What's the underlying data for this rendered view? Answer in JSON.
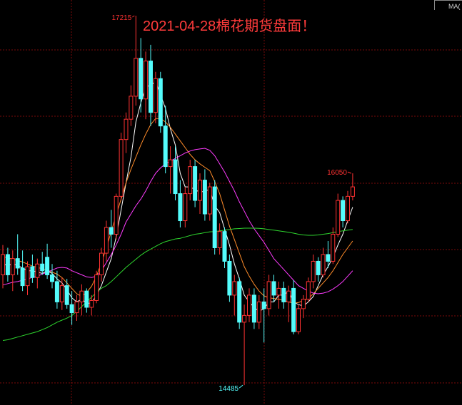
{
  "chart_data": {
    "type": "candlestick",
    "title": "2021-04-28棉花期货盘面！",
    "legend_label": "MA(",
    "up_color": "#ff3232",
    "down_color": "#54fcfc",
    "ylim": [
      14338,
      17331
    ],
    "open": [
      15300,
      15450,
      15300,
      15420,
      15350,
      15220,
      15360,
      15280,
      15380,
      15430,
      15300,
      15250,
      15100,
      15220,
      15080,
      15020,
      15100,
      15180,
      15060,
      15110,
      15300,
      15460,
      15650,
      15600,
      15880,
      16300,
      16450,
      16620,
      16900,
      16600,
      16880,
      16500,
      16750,
      16400,
      16100,
      16150,
      15900,
      15700,
      15900,
      16100,
      15850,
      16000,
      15750,
      15950,
      15500,
      15620,
      15400,
      15150,
      15250,
      14950,
      15000,
      15150,
      14950,
      15100,
      15050,
      15250,
      15150,
      15200,
      15100,
      15200,
      14880,
      15050,
      15120,
      15250,
      15400,
      15300,
      15450,
      15400,
      15600,
      15850,
      15700,
      15880
    ],
    "high": [
      15520,
      15500,
      15480,
      15600,
      15480,
      15400,
      15450,
      15420,
      15470,
      15530,
      15380,
      15330,
      15280,
      15270,
      15180,
      15150,
      15230,
      15200,
      15150,
      15330,
      15500,
      15700,
      15780,
      15900,
      16350,
      16500,
      16700,
      17215,
      17050,
      16950,
      17000,
      16800,
      16800,
      16550,
      16250,
      16250,
      16000,
      15950,
      16150,
      16150,
      16050,
      16080,
      15980,
      16000,
      15680,
      15650,
      15450,
      15300,
      15280,
      15080,
      15200,
      15200,
      15150,
      15200,
      15300,
      15300,
      15250,
      15250,
      15220,
      15260,
      15080,
      15150,
      15280,
      15450,
      15430,
      15500,
      15550,
      15650,
      15900,
      15880,
      15920,
      16050
    ],
    "low": [
      15200,
      15250,
      15180,
      15300,
      15180,
      15150,
      15240,
      15200,
      15300,
      15270,
      15200,
      15050,
      15040,
      15050,
      14930,
      14960,
      15000,
      15020,
      15000,
      15090,
      15250,
      15400,
      15500,
      15560,
      15850,
      16200,
      16400,
      16550,
      16500,
      16450,
      16400,
      16420,
      16350,
      16050,
      15900,
      15850,
      15650,
      15650,
      15850,
      15800,
      15750,
      15700,
      15700,
      15450,
      15450,
      15350,
      15100,
      15000,
      14900,
      14485,
      14950,
      14900,
      14900,
      14800,
      15000,
      15100,
      15050,
      15050,
      14950,
      14860,
      14860,
      14980,
      15100,
      15200,
      15250,
      15280,
      15350,
      15380,
      15580,
      15650,
      15680,
      15850
    ],
    "close": [
      15450,
      15300,
      15420,
      15350,
      15220,
      15360,
      15280,
      15380,
      15330,
      15300,
      15250,
      15100,
      15220,
      15080,
      15020,
      15100,
      15180,
      15060,
      15110,
      15300,
      15460,
      15650,
      15600,
      15880,
      16300,
      16450,
      16620,
      16900,
      16600,
      16880,
      16500,
      16750,
      16400,
      16100,
      16150,
      15900,
      15700,
      15900,
      16100,
      15850,
      16000,
      15750,
      15950,
      15500,
      15620,
      15400,
      15150,
      15250,
      14950,
      15000,
      15150,
      14950,
      15100,
      15050,
      15250,
      15150,
      15200,
      15100,
      15180,
      14880,
      15050,
      15120,
      15250,
      15400,
      15300,
      15450,
      15400,
      15600,
      15850,
      15700,
      15880,
      15950
    ],
    "series": [
      {
        "color": "#ffffff",
        "values": [
          15380,
          15370,
          15380,
          15370,
          15350,
          15330,
          15330,
          15320,
          15310,
          15330,
          15310,
          15270,
          15240,
          15190,
          15130,
          15100,
          15120,
          15090,
          15090,
          15150,
          15220,
          15320,
          15420,
          15580,
          15780,
          15980,
          16170,
          16430,
          16570,
          16690,
          16700,
          16730,
          16630,
          16530,
          16380,
          16260,
          16050,
          15950,
          15950,
          15930,
          15910,
          15920,
          15930,
          15810,
          15760,
          15640,
          15520,
          15380,
          15270,
          15150,
          15100,
          15060,
          15030,
          15050,
          15100,
          15100,
          15150,
          15150,
          15180,
          15100,
          15080,
          15070,
          15100,
          15140,
          15220,
          15300,
          15360,
          15430,
          15520,
          15600,
          15700,
          15800
        ]
      },
      {
        "color": "#ff8c2a",
        "values": [
          15435,
          15425,
          15415,
          15405,
          15395,
          15380,
          15365,
          15355,
          15345,
          15335,
          15320,
          15305,
          15280,
          15240,
          15200,
          15160,
          15140,
          15170,
          15215,
          15290,
          15390,
          15500,
          15620,
          15740,
          15860,
          15980,
          16080,
          16170,
          16260,
          16340,
          16410,
          16455,
          16455,
          16430,
          16390,
          16340,
          16290,
          16240,
          16190,
          16150,
          16120,
          16095,
          16070,
          15990,
          15900,
          15780,
          15660,
          15560,
          15460,
          15360,
          15290,
          15230,
          15180,
          15145,
          15130,
          15125,
          15120,
          15110,
          15100,
          15090,
          15095,
          15110,
          15125,
          15160,
          15200,
          15240,
          15280,
          15330,
          15390,
          15450,
          15500,
          15550
        ]
      },
      {
        "color": "#ff3cff",
        "values": [
          15225,
          15235,
          15245,
          15250,
          15260,
          15270,
          15280,
          15290,
          15305,
          15320,
          15335,
          15350,
          15355,
          15350,
          15330,
          15315,
          15300,
          15285,
          15280,
          15290,
          15330,
          15390,
          15450,
          15520,
          15600,
          15690,
          15750,
          15810,
          15860,
          15920,
          15990,
          16050,
          16090,
          16120,
          16140,
          16160,
          16180,
          16200,
          16215,
          16225,
          16230,
          16235,
          16220,
          16180,
          16120,
          16060,
          15990,
          15920,
          15840,
          15770,
          15700,
          15640,
          15590,
          15540,
          15480,
          15420,
          15380,
          15340,
          15300,
          15260,
          15220,
          15200,
          15180,
          15165,
          15160,
          15165,
          15175,
          15195,
          15220,
          15250,
          15290,
          15330
        ]
      },
      {
        "color": "#2ed52e",
        "values": [
          14815,
          14820,
          14830,
          14840,
          14850,
          14860,
          14870,
          14880,
          14895,
          14910,
          14930,
          14950,
          14965,
          14980,
          15000,
          15030,
          15065,
          15100,
          15135,
          15170,
          15200,
          15220,
          15250,
          15285,
          15320,
          15355,
          15385,
          15415,
          15445,
          15470,
          15490,
          15510,
          15530,
          15545,
          15555,
          15565,
          15570,
          15580,
          15590,
          15600,
          15605,
          15612,
          15618,
          15620,
          15625,
          15630,
          15635,
          15640,
          15642,
          15645,
          15645,
          15645,
          15643,
          15640,
          15635,
          15630,
          15625,
          15620,
          15615,
          15608,
          15600,
          15595,
          15592,
          15592,
          15595,
          15600,
          15605,
          15612,
          15620,
          15625,
          15630,
          15635
        ]
      }
    ]
  }
}
